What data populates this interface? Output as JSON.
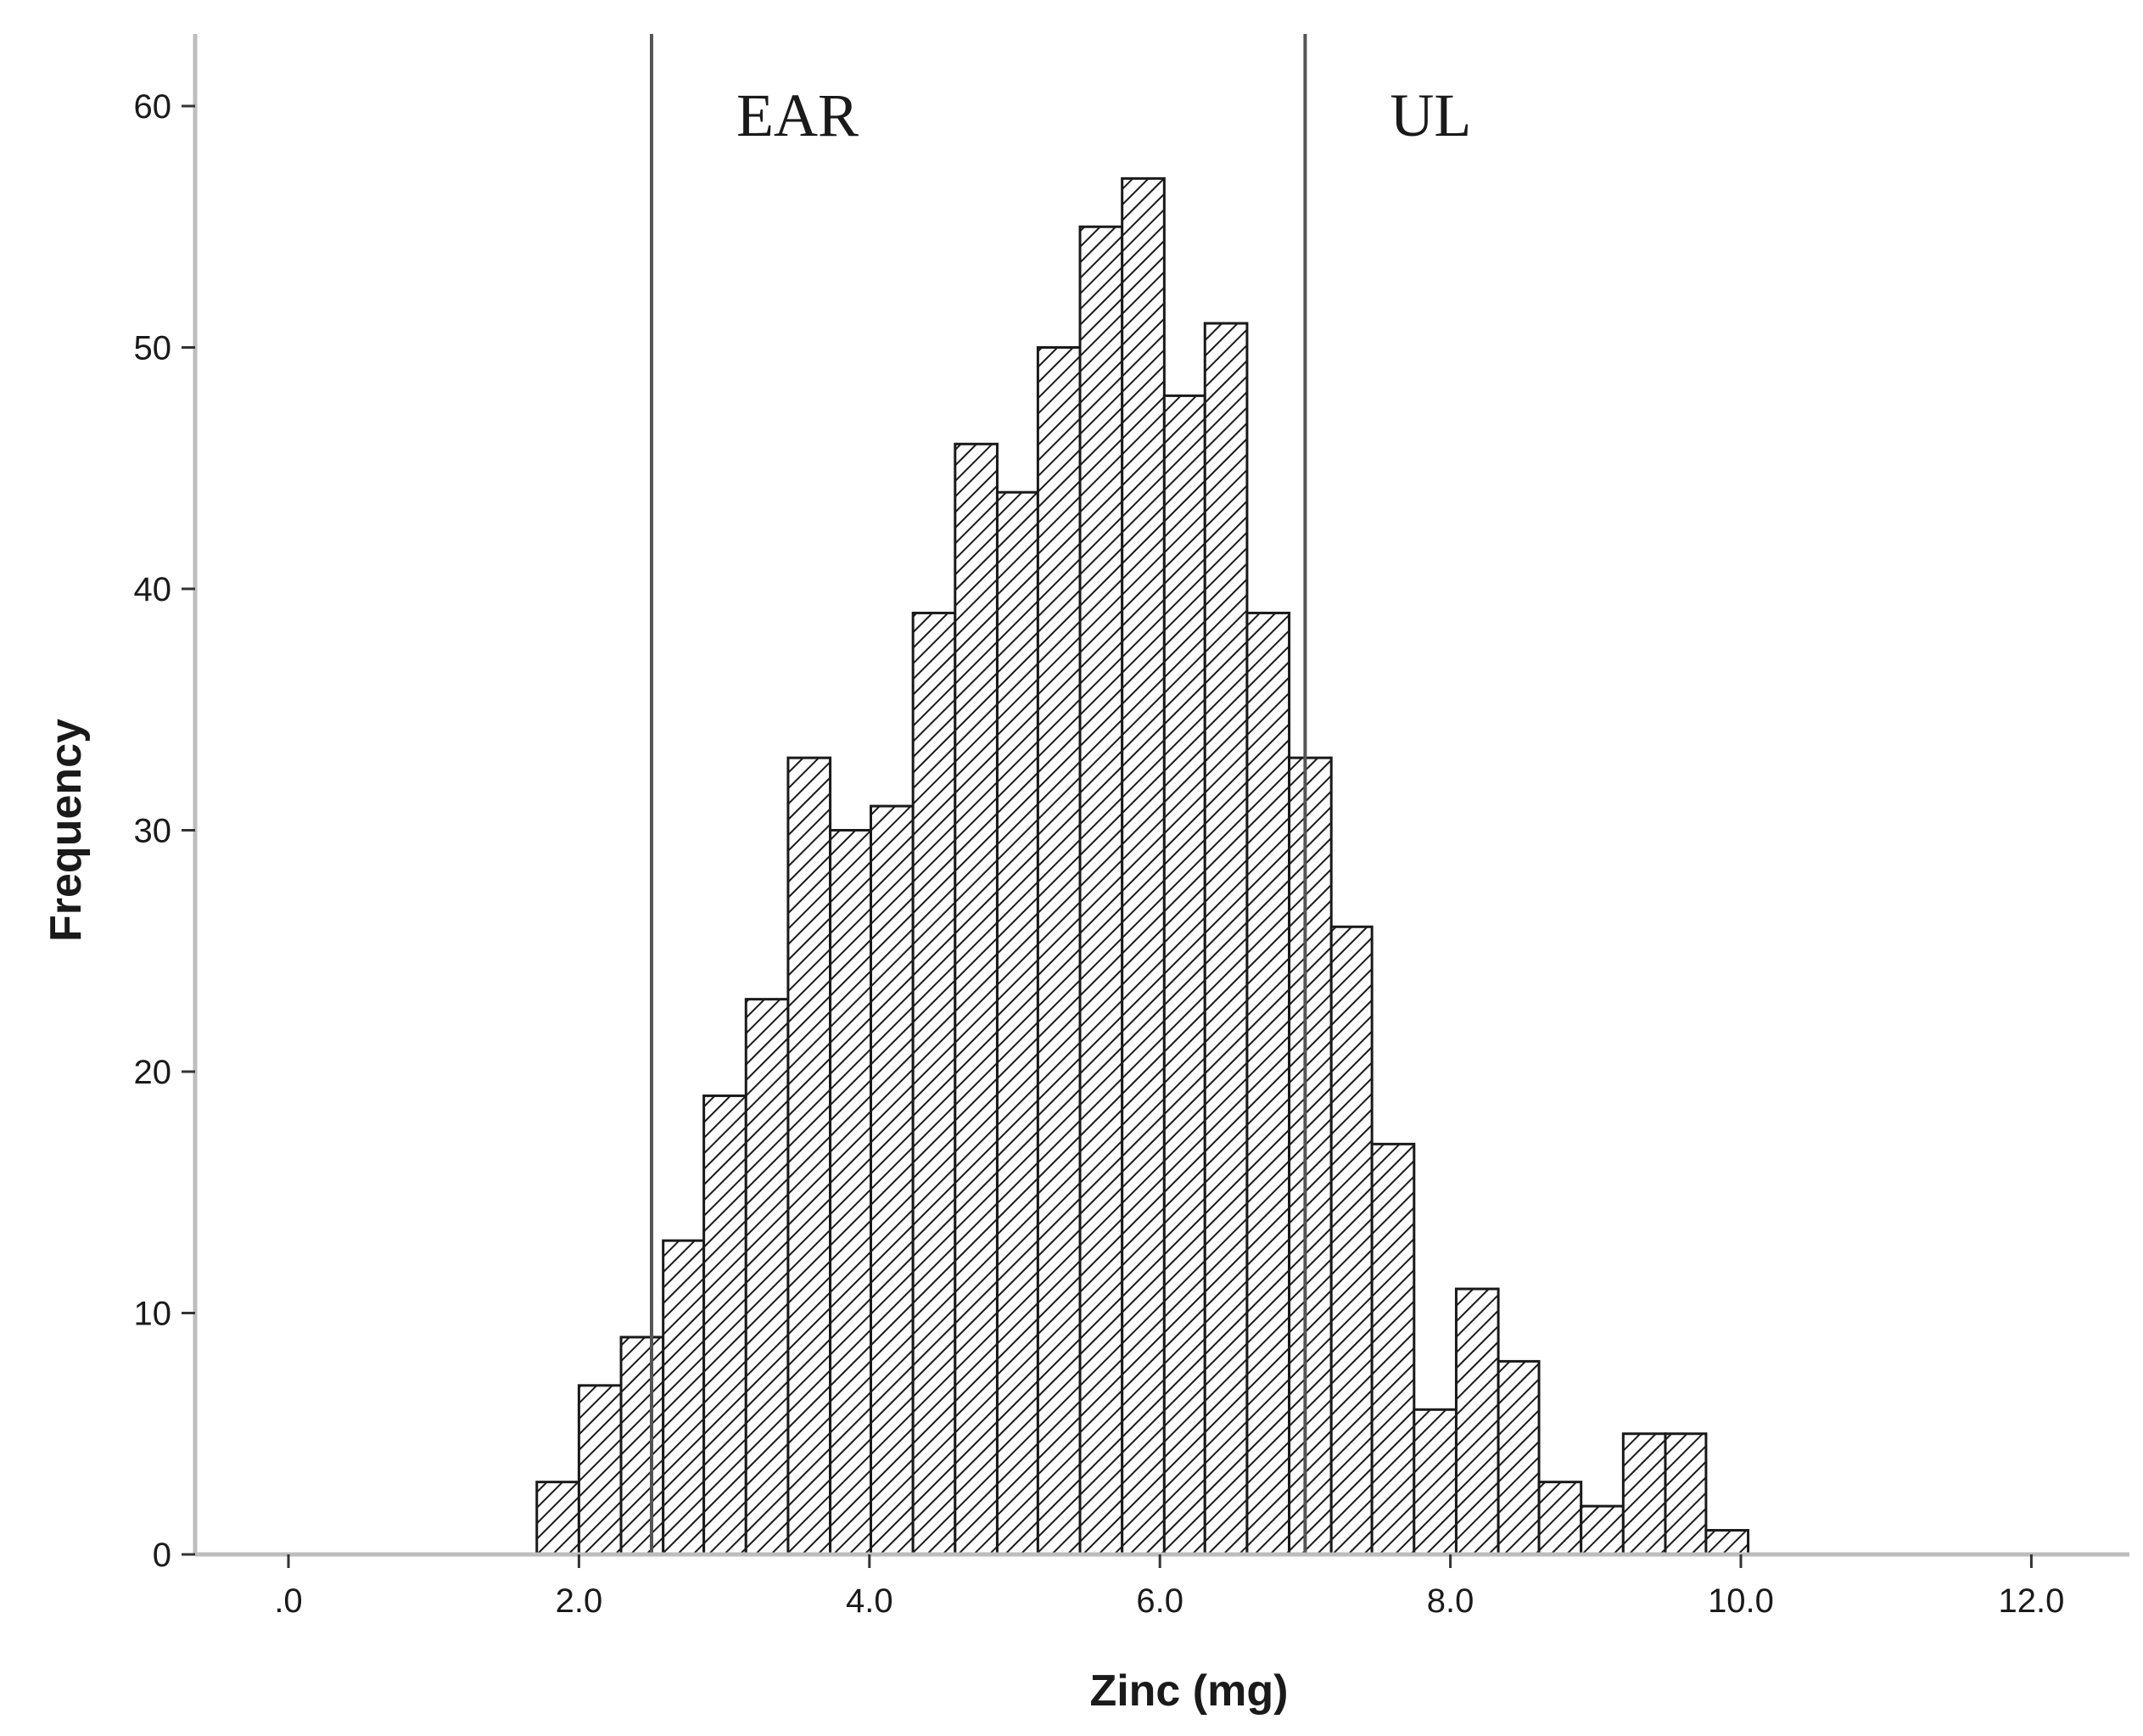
{
  "chart_data": {
    "type": "bar",
    "subtype": "histogram",
    "title": "",
    "xlabel": "Zinc (mg)",
    "ylabel": "Frequency",
    "xlim": [
      -0.65,
      12.7
    ],
    "ylim": [
      0,
      63
    ],
    "x_ticks": [
      0,
      2,
      4,
      6,
      8,
      10,
      12
    ],
    "x_tick_labels": [
      ".0",
      "2.0",
      "4.0",
      "6.0",
      "8.0",
      "10.0",
      "12.0"
    ],
    "y_ticks": [
      0,
      10,
      20,
      30,
      40,
      50,
      60
    ],
    "y_tick_labels": [
      "0",
      "10",
      "20",
      "30",
      "40",
      "50",
      "60"
    ],
    "grid": false,
    "bin_width": 0.2875,
    "bins": [
      {
        "x0": 1.71,
        "x1": 2.0,
        "count": 3
      },
      {
        "x0": 2.0,
        "x1": 2.29,
        "count": 7
      },
      {
        "x0": 2.29,
        "x1": 2.58,
        "count": 9
      },
      {
        "x0": 2.58,
        "x1": 2.86,
        "count": 13
      },
      {
        "x0": 2.86,
        "x1": 3.15,
        "count": 19
      },
      {
        "x0": 3.15,
        "x1": 3.44,
        "count": 23
      },
      {
        "x0": 3.44,
        "x1": 3.73,
        "count": 33
      },
      {
        "x0": 3.73,
        "x1": 4.01,
        "count": 30
      },
      {
        "x0": 4.01,
        "x1": 4.3,
        "count": 31
      },
      {
        "x0": 4.3,
        "x1": 4.59,
        "count": 39
      },
      {
        "x0": 4.59,
        "x1": 4.88,
        "count": 46
      },
      {
        "x0": 4.88,
        "x1": 5.16,
        "count": 44
      },
      {
        "x0": 5.16,
        "x1": 5.45,
        "count": 50
      },
      {
        "x0": 5.45,
        "x1": 5.74,
        "count": 55
      },
      {
        "x0": 5.74,
        "x1": 6.03,
        "count": 57
      },
      {
        "x0": 6.03,
        "x1": 6.31,
        "count": 48
      },
      {
        "x0": 6.31,
        "x1": 6.6,
        "count": 51
      },
      {
        "x0": 6.6,
        "x1": 6.89,
        "count": 39
      },
      {
        "x0": 6.89,
        "x1": 7.18,
        "count": 33
      },
      {
        "x0": 7.18,
        "x1": 7.46,
        "count": 26
      },
      {
        "x0": 7.46,
        "x1": 7.75,
        "count": 17
      },
      {
        "x0": 7.75,
        "x1": 8.04,
        "count": 6
      },
      {
        "x0": 8.04,
        "x1": 8.33,
        "count": 11
      },
      {
        "x0": 8.33,
        "x1": 8.61,
        "count": 8
      },
      {
        "x0": 8.61,
        "x1": 8.9,
        "count": 3
      },
      {
        "x0": 8.9,
        "x1": 9.19,
        "count": 2
      },
      {
        "x0": 9.19,
        "x1": 9.48,
        "count": 5
      },
      {
        "x0": 9.48,
        "x1": 9.76,
        "count": 5
      },
      {
        "x0": 9.76,
        "x1": 10.05,
        "count": 1
      }
    ],
    "reference_lines": [
      {
        "label": "EAR",
        "x": 2.5
      },
      {
        "label": "UL",
        "x": 7.0
      }
    ],
    "bar_fill": "diagonal-hatch",
    "colors": {
      "bar_edge": "#1a1a1a",
      "hatch": "#1a1a1a",
      "axis": "#bdbdbd",
      "reference": "#555555"
    }
  }
}
